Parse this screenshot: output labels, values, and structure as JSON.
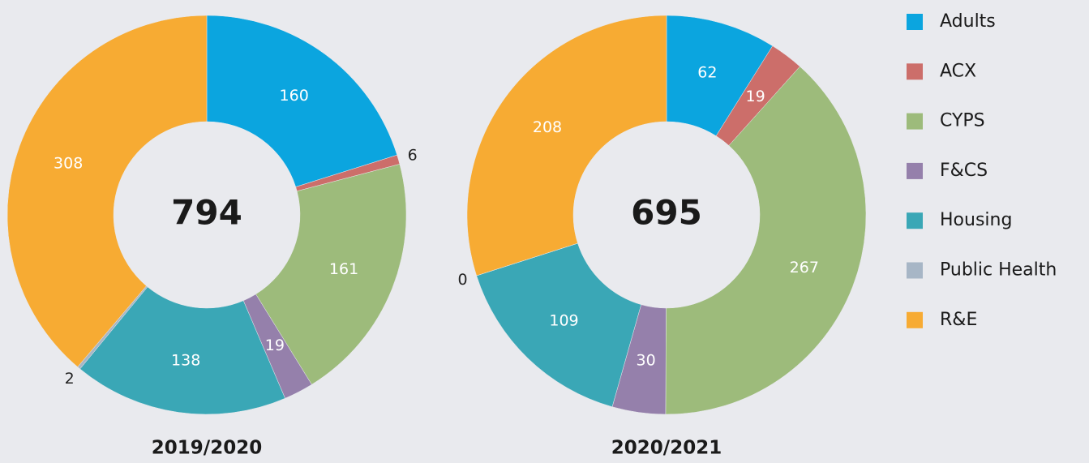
{
  "chart_data": [
    {
      "type": "pie",
      "title": "2019/2020",
      "total": 794,
      "categories": [
        "Adults",
        "ACX",
        "CYPS",
        "F&CS",
        "Housing",
        "Public Health",
        "R&E"
      ],
      "values": [
        160,
        6,
        161,
        19,
        138,
        2,
        308
      ],
      "colors": [
        "#0ba5df",
        "#cc6e6a",
        "#9dbb7b",
        "#9580ab",
        "#3aa7b6",
        "#a7b6c6",
        "#f7ab33"
      ]
    },
    {
      "type": "pie",
      "title": "2020/2021",
      "total": 695,
      "categories": [
        "Adults",
        "ACX",
        "CYPS",
        "F&CS",
        "Housing",
        "Public Health",
        "R&E"
      ],
      "values": [
        62,
        19,
        267,
        30,
        109,
        0,
        208
      ],
      "colors": [
        "#0ba5df",
        "#cc6e6a",
        "#9dbb7b",
        "#9580ab",
        "#3aa7b6",
        "#a7b6c6",
        "#f7ab33"
      ]
    }
  ]
}
